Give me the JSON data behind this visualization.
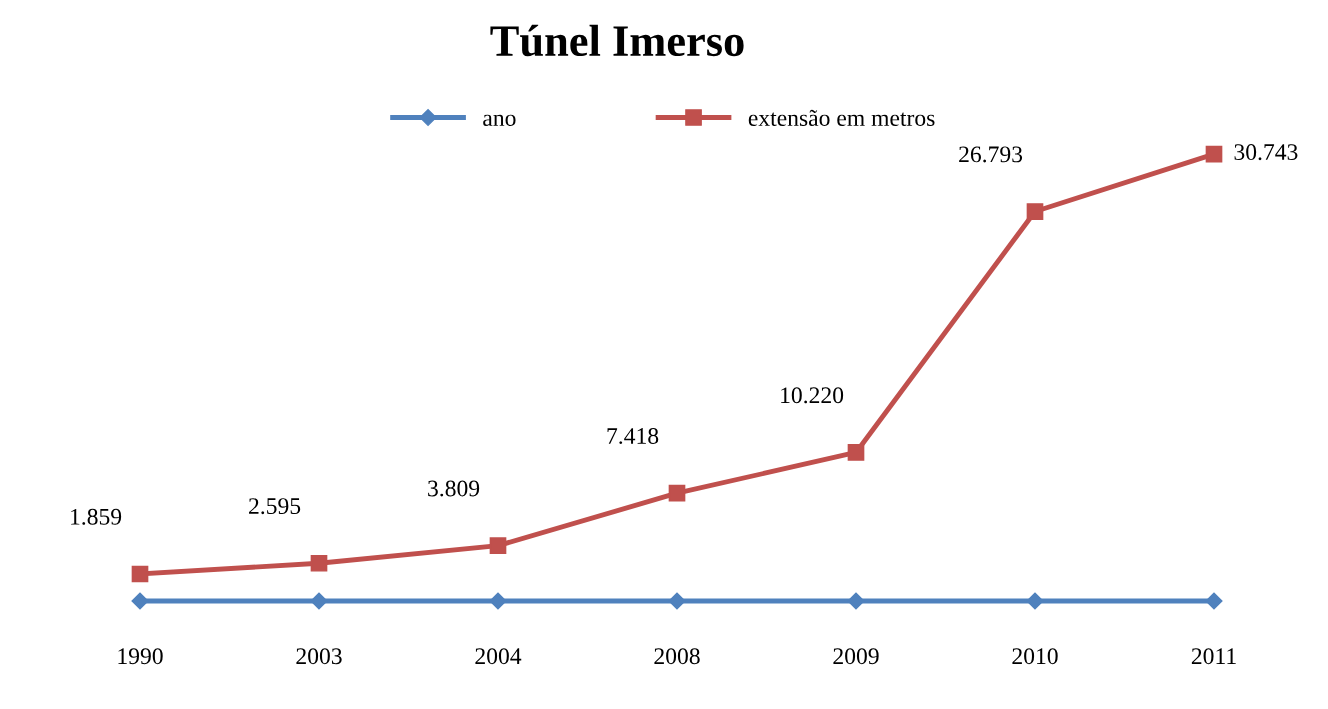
{
  "chart_data": {
    "type": "line",
    "title": "Túnel Imerso",
    "categories": [
      "1990",
      "2003",
      "2004",
      "2008",
      "2009",
      "2010",
      "2011"
    ],
    "series": [
      {
        "name": "ano",
        "color": "#4f81bd",
        "marker": "diamond",
        "values": [
          0,
          0,
          0,
          0,
          0,
          0,
          0
        ]
      },
      {
        "name": "extensão em metros",
        "color": "#c0504d",
        "marker": "square",
        "values": [
          1859,
          2595,
          3809,
          7418,
          10220,
          26793,
          30743
        ],
        "value_labels": [
          "1.859",
          "2.595",
          "3.809",
          "7.418",
          "10.220",
          "26.793",
          "30.743"
        ]
      }
    ],
    "tick_labels": "x",
    "grid": false,
    "legend": "top"
  }
}
